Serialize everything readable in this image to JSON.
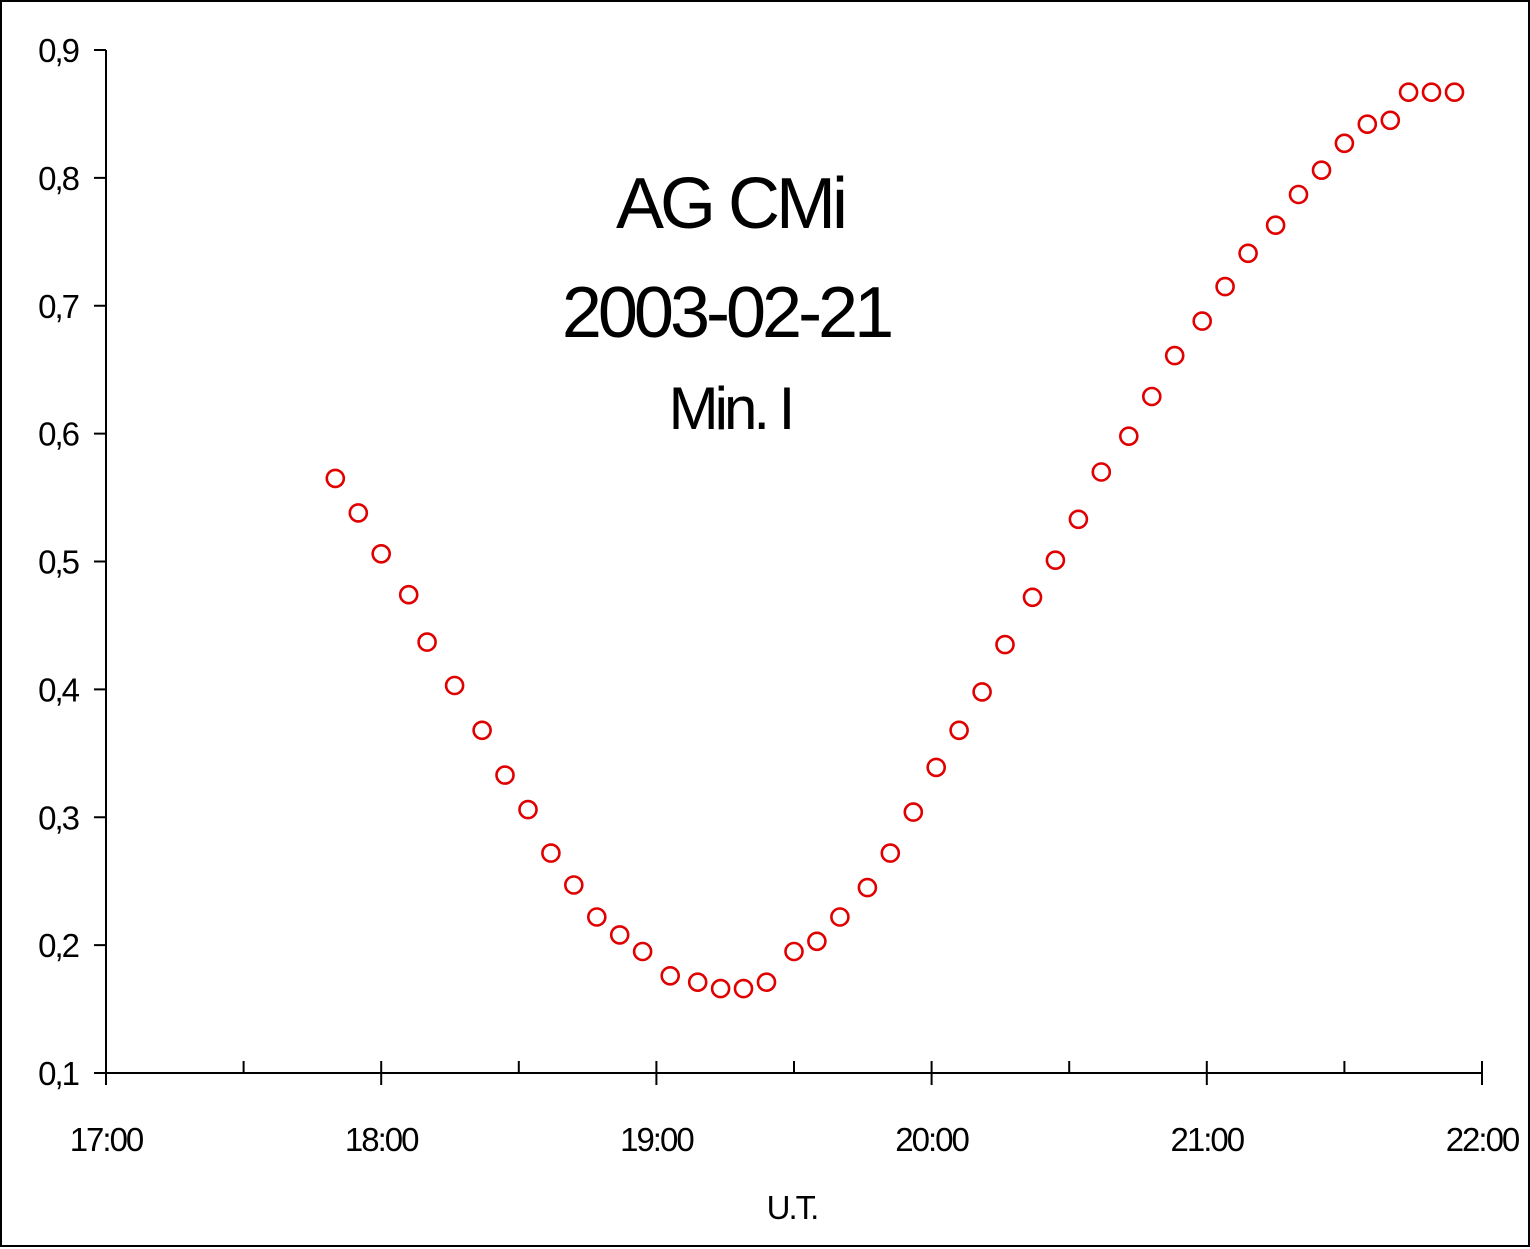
{
  "chart_data": {
    "type": "scatter",
    "title_lines": [
      "AG CMi",
      "2003-02-21",
      "Min. I"
    ],
    "xlabel": "U.T.",
    "ylabel": "",
    "xlim": [
      "17:00",
      "22:00"
    ],
    "ylim": [
      0.1,
      0.9
    ],
    "x_ticks": [
      "17:00",
      "18:00",
      "19:00",
      "20:00",
      "21:00",
      "22:00"
    ],
    "y_ticks": [
      "0,1",
      "0,2",
      "0,3",
      "0,4",
      "0,5",
      "0,6",
      "0,7",
      "0,8",
      "0,9"
    ],
    "grid": false,
    "marker": "open-circle",
    "marker_color": "#e00000",
    "series": [
      {
        "x": [
          "17:50",
          "17:55",
          "18:00",
          "18:06",
          "18:10",
          "18:16",
          "18:22",
          "18:27",
          "18:32",
          "18:37",
          "18:42",
          "18:47",
          "18:52",
          "18:57",
          "19:03",
          "19:09",
          "19:14",
          "19:19",
          "19:24",
          "19:30",
          "19:35",
          "19:40",
          "19:46",
          "19:51",
          "19:56",
          "20:01",
          "20:06",
          "20:11",
          "20:16",
          "20:22",
          "20:27",
          "20:32",
          "20:37",
          "20:43",
          "20:48",
          "20:53",
          "20:59",
          "21:04",
          "21:09",
          "21:15",
          "21:20",
          "21:25",
          "21:30",
          "21:35",
          "21:40",
          "21:44",
          "21:49",
          "21:54"
        ],
        "y": [
          0.565,
          0.538,
          0.506,
          0.474,
          0.437,
          0.403,
          0.368,
          0.333,
          0.306,
          0.272,
          0.247,
          0.222,
          0.208,
          0.195,
          0.176,
          0.171,
          0.166,
          0.166,
          0.171,
          0.195,
          0.203,
          0.222,
          0.245,
          0.272,
          0.304,
          0.339,
          0.368,
          0.398,
          0.435,
          0.472,
          0.501,
          0.533,
          0.57,
          0.598,
          0.629,
          0.661,
          0.688,
          0.715,
          0.741,
          0.763,
          0.787,
          0.806,
          0.827,
          0.842,
          0.845,
          0.867,
          0.867,
          0.867
        ]
      }
    ]
  }
}
